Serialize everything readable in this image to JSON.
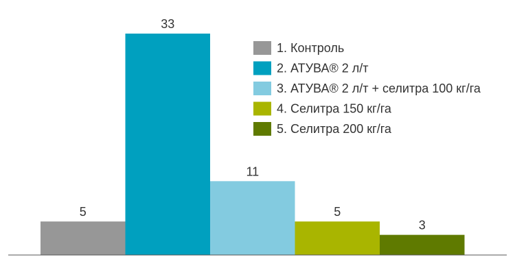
{
  "chart_data": {
    "type": "bar",
    "categories": [
      "1. Контроль",
      "2. АТУВА® 2 л/т",
      "3. АТУВА® 2 л/т + селитра 100 кг/га",
      "4. Селитра 150 кг/га",
      "5. Селитра 200 кг/га"
    ],
    "values": [
      5,
      33,
      11,
      5,
      3
    ],
    "data_labels": [
      "5",
      "33",
      "11",
      "5",
      "3"
    ],
    "colors": [
      "#979797",
      "#00a0bf",
      "#83cbe0",
      "#a9b500",
      "#5f7a00"
    ],
    "title": "",
    "xlabel": "",
    "ylabel": "",
    "ylim": [
      0,
      33
    ],
    "grid": false,
    "legend": {
      "position": "top-right",
      "entries": [
        "1. Контроль",
        "2. АТУВА® 2 л/т",
        "3. АТУВА® 2 л/т + селитра 100 кг/га",
        "4. Селитра 150 кг/га",
        "5. Селитра 200 кг/га"
      ]
    }
  }
}
